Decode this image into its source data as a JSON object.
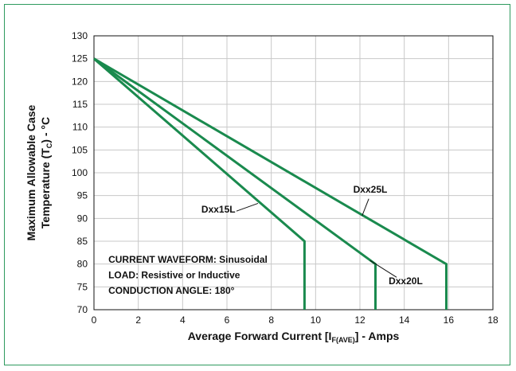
{
  "chart_data": {
    "type": "line",
    "xlim": [
      0,
      18
    ],
    "ylim": [
      70,
      130
    ],
    "x_ticks": [
      "0",
      "2",
      "4",
      "6",
      "8",
      "10",
      "12",
      "14",
      "16",
      "18"
    ],
    "y_ticks": [
      "70",
      "75",
      "80",
      "85",
      "90",
      "95",
      "100",
      "105",
      "110",
      "115",
      "120",
      "125",
      "130"
    ],
    "xlabel": "Average Forward Current [I",
    "xlabel_sub": "F(AVE)",
    "xlabel_tail": "] - Amps",
    "ylabel_line1": "Maximum Allowable Case",
    "ylabel_line2_head": "Temperature (T",
    "ylabel_line2_sub": "C",
    "ylabel_line2_tail": ") - °C",
    "grid": true,
    "line_color": "#1a8a4e",
    "series": [
      {
        "name": "Dxx15L",
        "points": [
          [
            0,
            125
          ],
          [
            9.5,
            85
          ],
          [
            9.5,
            70
          ]
        ]
      },
      {
        "name": "Dxx20L",
        "points": [
          [
            0,
            125
          ],
          [
            12.7,
            80
          ],
          [
            12.7,
            70
          ]
        ]
      },
      {
        "name": "Dxx25L",
        "points": [
          [
            0,
            125
          ],
          [
            15.9,
            80
          ],
          [
            15.9,
            70
          ]
        ]
      }
    ],
    "notes": [
      "CURRENT WAVEFORM: Sinusoidal",
      "LOAD: Resistive or Inductive",
      "CONDUCTION ANGLE: 180°"
    ]
  }
}
